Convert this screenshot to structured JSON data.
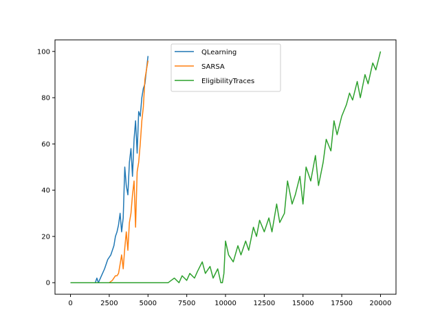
{
  "chart_data": {
    "type": "line",
    "title": "",
    "xlabel": "",
    "ylabel": "",
    "xlim": [
      -1000,
      21000
    ],
    "ylim": [
      -5,
      105
    ],
    "xticks": [
      0,
      2500,
      5000,
      7500,
      10000,
      12500,
      15000,
      17500,
      20000
    ],
    "yticks": [
      0,
      20,
      40,
      60,
      80,
      100
    ],
    "grid": false,
    "legend_position": "top-center",
    "series": [
      {
        "name": "QLearning",
        "color": "#1f77b4",
        "x": [
          0,
          1000,
          1600,
          1700,
          1800,
          2000,
          2200,
          2400,
          2600,
          2800,
          2900,
          3000,
          3100,
          3200,
          3300,
          3400,
          3500,
          3600,
          3700,
          3800,
          3900,
          4000,
          4100,
          4200,
          4300,
          4400,
          4500,
          4600,
          4700,
          4800,
          4900,
          5000
        ],
        "y": [
          0,
          0,
          0,
          2,
          0,
          3,
          6,
          10,
          12,
          16,
          20,
          22,
          25,
          30,
          22,
          28,
          50,
          42,
          38,
          52,
          58,
          46,
          62,
          70,
          56,
          74,
          72,
          80,
          84,
          86,
          92,
          98
        ]
      },
      {
        "name": "SARSA",
        "color": "#ff7f0e",
        "x": [
          0,
          1000,
          2000,
          2500,
          2700,
          2900,
          3000,
          3100,
          3200,
          3300,
          3400,
          3500,
          3600,
          3700,
          3800,
          3900,
          4000,
          4100,
          4200,
          4300,
          4400,
          4500,
          4600,
          4700,
          4800,
          4900,
          5000
        ],
        "y": [
          0,
          0,
          0,
          0,
          1,
          3,
          3,
          4,
          8,
          12,
          6,
          15,
          22,
          14,
          26,
          30,
          38,
          44,
          24,
          48,
          52,
          60,
          70,
          76,
          88,
          92,
          96
        ]
      },
      {
        "name": "EligibilityTraces",
        "color": "#2ca02c",
        "x": [
          0,
          2000,
          4000,
          6000,
          6300,
          6500,
          6700,
          7000,
          7200,
          7500,
          7700,
          8000,
          8200,
          8500,
          8700,
          9000,
          9200,
          9500,
          9700,
          9800,
          9900,
          10000,
          10200,
          10500,
          10800,
          11000,
          11300,
          11500,
          11800,
          12000,
          12200,
          12500,
          12800,
          13000,
          13300,
          13500,
          13800,
          14000,
          14300,
          14500,
          14800,
          15000,
          15200,
          15500,
          15800,
          16000,
          16300,
          16500,
          16800,
          17000,
          17200,
          17500,
          17800,
          18000,
          18200,
          18500,
          18700,
          19000,
          19200,
          19500,
          19700,
          20000
        ],
        "y": [
          0,
          0,
          0,
          0,
          0,
          1,
          2,
          0,
          3,
          1,
          4,
          2,
          5,
          9,
          4,
          7,
          2,
          6,
          0,
          0,
          4,
          18,
          12,
          9,
          16,
          12,
          18,
          14,
          24,
          20,
          27,
          22,
          28,
          22,
          34,
          26,
          30,
          44,
          34,
          38,
          46,
          34,
          50,
          44,
          55,
          42,
          52,
          62,
          57,
          70,
          64,
          72,
          77,
          82,
          79,
          87,
          80,
          90,
          86,
          95,
          92,
          100
        ]
      }
    ]
  }
}
